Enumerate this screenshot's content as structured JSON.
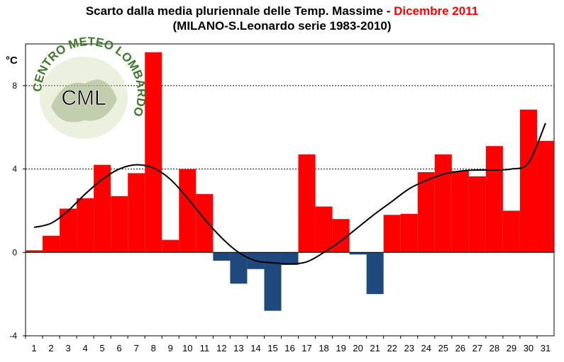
{
  "chart_data": {
    "type": "bar",
    "title_part1": "Scarto dalla media pluriennale delle Temp. Massime - ",
    "title_part2": "Dicembre 2011",
    "subtitle": "(MILANO-S.Leonardo serie 1983-2010)",
    "ylabel": "°C",
    "xlabel": "",
    "ylim": [
      -4,
      10
    ],
    "yticks": [
      -4,
      0,
      4,
      8
    ],
    "grid_lines": [
      4,
      8
    ],
    "categories": [
      "1",
      "2",
      "3",
      "4",
      "5",
      "6",
      "7",
      "8",
      "9",
      "10",
      "11",
      "12",
      "13",
      "14",
      "15",
      "16",
      "17",
      "18",
      "19",
      "20",
      "21",
      "22",
      "23",
      "24",
      "25",
      "26",
      "27",
      "28",
      "29",
      "30",
      "31"
    ],
    "values": [
      0.1,
      0.8,
      2.1,
      2.6,
      4.2,
      2.7,
      3.8,
      9.6,
      0.6,
      4.0,
      2.8,
      -0.4,
      -1.5,
      -0.8,
      -2.8,
      -0.6,
      4.7,
      2.2,
      1.6,
      -0.1,
      -2.0,
      1.8,
      1.85,
      3.85,
      4.7,
      3.9,
      3.65,
      5.1,
      2.0,
      6.85,
      5.35
    ],
    "trend": [
      1.2,
      1.4,
      2.0,
      2.8,
      3.5,
      4.0,
      4.2,
      4.05,
      3.5,
      2.6,
      1.6,
      0.7,
      0.0,
      -0.4,
      -0.5,
      -0.55,
      -0.45,
      0.0,
      0.55,
      1.2,
      1.85,
      2.45,
      3.05,
      3.45,
      3.75,
      3.9,
      3.95,
      3.95,
      4.0,
      4.3,
      6.2
    ],
    "colors": {
      "positive": "#ff0000",
      "negative": "#1f497d",
      "trend": "#000000"
    }
  },
  "logo": {
    "text_top": "CENTRO METEO LOMBARDO",
    "text_center": "CML"
  }
}
